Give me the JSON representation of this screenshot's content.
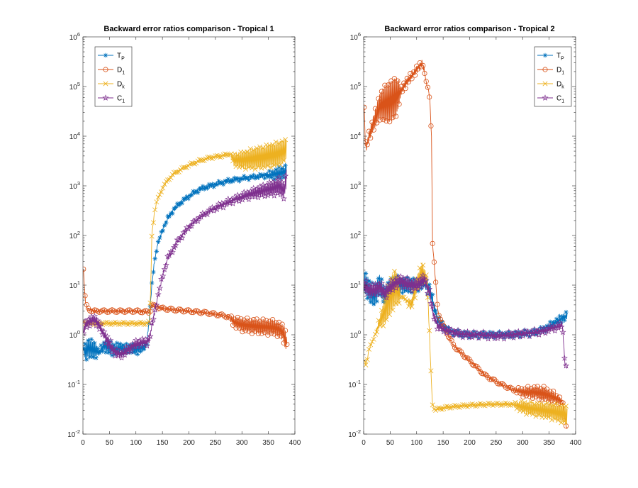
{
  "figure": {
    "background": "#ffffff"
  },
  "chart_data": [
    {
      "type": "line",
      "title": "Backward error ratios comparison - Tropical 1",
      "xlabel": "",
      "ylabel": "",
      "yscale": "log",
      "xlim": [
        0,
        400
      ],
      "ylim": [
        0.01,
        1000000
      ],
      "xticks": [
        "0",
        "50",
        "100",
        "150",
        "200",
        "250",
        "300",
        "350",
        "400"
      ],
      "yticks": [
        {
          "base": "10",
          "exp": "-2"
        },
        {
          "base": "10",
          "exp": "-1"
        },
        {
          "base": "10",
          "exp": "0"
        },
        {
          "base": "10",
          "exp": "1"
        },
        {
          "base": "10",
          "exp": "2"
        },
        {
          "base": "10",
          "exp": "3"
        },
        {
          "base": "10",
          "exp": "4"
        },
        {
          "base": "10",
          "exp": "5"
        },
        {
          "base": "10",
          "exp": "6"
        }
      ],
      "legend_position": "top-left",
      "series": [
        {
          "name": "T_P",
          "main": "T",
          "sub": "P",
          "color": "#0072BD",
          "marker": "asterisk",
          "x": [
            1,
            5,
            10,
            20,
            30,
            40,
            50,
            60,
            70,
            80,
            90,
            100,
            110,
            120,
            125,
            130,
            135,
            140,
            150,
            160,
            170,
            180,
            200,
            220,
            240,
            260,
            280,
            300,
            320,
            340,
            360,
            370,
            380,
            384
          ],
          "values": [
            0.5,
            0.45,
            0.55,
            0.5,
            0.45,
            0.6,
            0.55,
            0.5,
            0.55,
            0.5,
            0.55,
            0.5,
            0.55,
            0.6,
            2,
            10,
            30,
            60,
            130,
            220,
            320,
            420,
            620,
            850,
            1000,
            1150,
            1300,
            1400,
            1500,
            1600,
            1700,
            1800,
            1900,
            2000
          ],
          "band": [
            1,
            2.2,
            2.2,
            2.2,
            1.2,
            1.5,
            1.8,
            1.6,
            1.5,
            1.5,
            1.4,
            1.5,
            1.4,
            1.3,
            1.2,
            1.1,
            1.1,
            1.1,
            1.1,
            1.1,
            1.1,
            1.1,
            1.1,
            1.1,
            1.1,
            1.1,
            1.1,
            1.1,
            1.1,
            1.1,
            1.4,
            1.6,
            1.6,
            1.6
          ]
        },
        {
          "name": "D_1",
          "main": "D",
          "sub": "1",
          "color": "#D95319",
          "marker": "circle",
          "x": [
            1,
            3,
            5,
            8,
            12,
            16,
            20,
            30,
            50,
            80,
            100,
            120,
            126,
            128,
            130,
            135,
            140,
            150,
            170,
            200,
            230,
            260,
            275,
            285,
            300,
            320,
            340,
            360,
            370,
            378,
            382,
            385
          ],
          "values": [
            22,
            8,
            4.5,
            3.5,
            3.2,
            3.1,
            3,
            3,
            3,
            3,
            3,
            2.9,
            2.8,
            3.5,
            4,
            3.8,
            3.6,
            3.4,
            3.2,
            3,
            2.8,
            2.5,
            2.3,
            1.8,
            1.6,
            1.5,
            1.45,
            1.4,
            1.3,
            1.1,
            0.8,
            0.65
          ],
          "band": [
            1,
            1,
            1,
            1,
            1,
            1,
            1,
            1,
            1,
            1,
            1,
            1,
            1,
            1,
            1,
            1,
            1,
            1,
            1,
            1,
            1,
            1,
            1,
            1.5,
            1.7,
            1.8,
            1.85,
            1.85,
            1.85,
            1.9,
            2.6,
            1
          ]
        },
        {
          "name": "D_k",
          "main": "D",
          "sub": "k",
          "color": "#EDB120",
          "marker": "cross",
          "x": [
            1,
            10,
            20,
            30,
            50,
            80,
            100,
            120,
            126,
            128,
            130,
            135,
            140,
            150,
            160,
            170,
            180,
            200,
            220,
            240,
            260,
            270,
            278,
            285,
            300,
            320,
            340,
            360,
            370,
            380,
            384
          ],
          "values": [
            1.8,
            1.7,
            1.7,
            1.7,
            1.7,
            1.7,
            1.7,
            1.7,
            1.8,
            10,
            100,
            300,
            500,
            900,
            1300,
            1700,
            2000,
            2600,
            3200,
            3700,
            4000,
            4200,
            4400,
            3300,
            3300,
            3500,
            3800,
            4200,
            4500,
            5000,
            5500
          ],
          "band": [
            1,
            1,
            1,
            1,
            1,
            1,
            1,
            1,
            1,
            1,
            1,
            1,
            1,
            1,
            1,
            1,
            1,
            1,
            1,
            1,
            1,
            1,
            1,
            1.6,
            2,
            2.4,
            2.6,
            2.8,
            2.8,
            2.6,
            2.4
          ]
        },
        {
          "name": "C_1",
          "main": "C",
          "sub": "1",
          "color": "#7E2F8E",
          "marker": "pentagram",
          "x": [
            1,
            5,
            10,
            20,
            25,
            30,
            40,
            50,
            60,
            70,
            80,
            90,
            100,
            110,
            120,
            125,
            130,
            140,
            150,
            160,
            180,
            200,
            220,
            240,
            260,
            280,
            300,
            320,
            340,
            360,
            370,
            380,
            384
          ],
          "values": [
            1.2,
            1.6,
            1.8,
            2.0,
            1.9,
            1.6,
            1.0,
            0.65,
            0.45,
            0.4,
            0.45,
            0.55,
            0.65,
            0.7,
            0.7,
            0.8,
            1.5,
            5,
            15,
            35,
            80,
            150,
            230,
            320,
            400,
            500,
            600,
            700,
            800,
            900,
            1000,
            800,
            1500
          ],
          "band": [
            1.4,
            1.4,
            1.4,
            1.4,
            1.4,
            1.4,
            1.4,
            1.5,
            1.3,
            1.3,
            1.3,
            1.3,
            1.3,
            1.3,
            1.3,
            1.3,
            1.2,
            1.1,
            1.1,
            1.1,
            1.1,
            1.1,
            1.1,
            1.1,
            1.2,
            1.2,
            1.3,
            1.4,
            1.6,
            1.8,
            2,
            2,
            2
          ]
        }
      ]
    },
    {
      "type": "line",
      "title": "Backward error ratios comparison - Tropical 2",
      "xlabel": "",
      "ylabel": "",
      "yscale": "log",
      "xlim": [
        0,
        400
      ],
      "ylim": [
        0.01,
        1000000
      ],
      "xticks": [
        "0",
        "50",
        "100",
        "150",
        "200",
        "250",
        "300",
        "350",
        "400"
      ],
      "yticks": [
        {
          "base": "10",
          "exp": "-2"
        },
        {
          "base": "10",
          "exp": "-1"
        },
        {
          "base": "10",
          "exp": "0"
        },
        {
          "base": "10",
          "exp": "1"
        },
        {
          "base": "10",
          "exp": "2"
        },
        {
          "base": "10",
          "exp": "3"
        },
        {
          "base": "10",
          "exp": "4"
        },
        {
          "base": "10",
          "exp": "5"
        },
        {
          "base": "10",
          "exp": "6"
        }
      ],
      "legend_position": "top-right",
      "series": [
        {
          "name": "T_P",
          "main": "T",
          "sub": "P",
          "color": "#0072BD",
          "marker": "asterisk",
          "x": [
            1,
            5,
            10,
            20,
            30,
            40,
            50,
            60,
            70,
            80,
            90,
            100,
            110,
            115,
            120,
            125,
            130,
            135,
            140,
            150,
            160,
            180,
            200,
            220,
            240,
            260,
            280,
            300,
            320,
            340,
            360,
            370,
            380,
            384
          ],
          "values": [
            12,
            10,
            8,
            6,
            10,
            6,
            9,
            11,
            10,
            10,
            10,
            10,
            11,
            12,
            9,
            8,
            5,
            3,
            2,
            1.5,
            1.2,
            1.05,
            1.0,
            1.0,
            1.0,
            1.0,
            1.0,
            1.05,
            1.1,
            1.3,
            1.7,
            2.0,
            2.3,
            2.5
          ],
          "band": [
            2.4,
            2.6,
            2.6,
            2.4,
            2.4,
            2.2,
            2,
            2,
            1.8,
            1.8,
            1.8,
            1.7,
            1.6,
            1.6,
            1.6,
            1.6,
            1.5,
            1.4,
            1.3,
            1.3,
            1.2,
            1.2,
            1.2,
            1.2,
            1.2,
            1.2,
            1.2,
            1.2,
            1.2,
            1.2,
            1.3,
            1.3,
            1.3,
            1.3
          ]
        },
        {
          "name": "D_1",
          "main": "D",
          "sub": "1",
          "color": "#D95319",
          "marker": "circle",
          "x": [
            1,
            3,
            5,
            10,
            20,
            30,
            40,
            50,
            60,
            70,
            80,
            90,
            100,
            110,
            115,
            118,
            120,
            123,
            125,
            128,
            130,
            135,
            140,
            150,
            170,
            200,
            230,
            260,
            280,
            300,
            320,
            340,
            360,
            375,
            380,
            384
          ],
          "values": [
            40000,
            8000,
            6000,
            10000,
            20000,
            40000,
            45000,
            50000,
            60000,
            80000,
            120000,
            160000,
            220000,
            300000,
            200000,
            120000,
            100000,
            80000,
            50000,
            10000,
            70,
            15,
            3,
            1.5,
            0.6,
            0.3,
            0.15,
            0.1,
            0.08,
            0.07,
            0.07,
            0.065,
            0.055,
            0.045,
            0.02,
            0.012
          ],
          "band": [
            1,
            1.2,
            1.2,
            1.5,
            2,
            3,
            5,
            6,
            6,
            1.4,
            1.4,
            1.3,
            1.3,
            1.2,
            1.2,
            1,
            1,
            1,
            1,
            1,
            1,
            1,
            1,
            1,
            1,
            1,
            1,
            1,
            1,
            1.4,
            1.6,
            1.8,
            1.5,
            1.2,
            1,
            1
          ]
        },
        {
          "name": "D_k",
          "main": "D",
          "sub": "k",
          "color": "#EDB120",
          "marker": "cross",
          "x": [
            1,
            5,
            10,
            20,
            30,
            40,
            50,
            60,
            70,
            80,
            90,
            100,
            110,
            120,
            125,
            128,
            130,
            135,
            140,
            160,
            200,
            240,
            280,
            300,
            320,
            340,
            360,
            380,
            384
          ],
          "values": [
            0.3,
            0.25,
            0.5,
            0.9,
            1.8,
            3,
            6,
            9,
            6,
            5,
            4,
            10,
            20,
            12,
            0.6,
            0.1,
            0.04,
            0.03,
            0.032,
            0.035,
            0.038,
            0.04,
            0.04,
            0.035,
            0.032,
            0.03,
            0.028,
            0.025,
            0.022
          ],
          "band": [
            1,
            1,
            1,
            1,
            1.5,
            3,
            5,
            5,
            1,
            1,
            1.5,
            2,
            2,
            1.5,
            1,
            1,
            1,
            1,
            1,
            1,
            1,
            1,
            1,
            1.6,
            1.7,
            1.8,
            2,
            2.2,
            2.4
          ]
        },
        {
          "name": "C_1",
          "main": "C",
          "sub": "1",
          "color": "#7E2F8E",
          "marker": "pentagram",
          "x": [
            1,
            5,
            10,
            20,
            30,
            40,
            50,
            60,
            70,
            80,
            90,
            100,
            110,
            115,
            120,
            125,
            130,
            135,
            140,
            150,
            160,
            180,
            200,
            220,
            240,
            260,
            280,
            300,
            320,
            340,
            360,
            370,
            375,
            380,
            384
          ],
          "values": [
            10,
            9,
            8,
            8,
            9,
            7,
            9,
            11,
            12,
            11,
            10,
            10,
            12,
            13,
            9,
            7,
            3,
            2,
            1.5,
            1.3,
            1.2,
            1.05,
            1.0,
            1.0,
            0.95,
            0.95,
            1.0,
            1.05,
            1.1,
            1.2,
            1.4,
            1.5,
            1.6,
            0.25,
            0.22
          ],
          "band": [
            1.6,
            1.6,
            1.6,
            1.6,
            1.6,
            1.6,
            1.6,
            1.5,
            1.5,
            1.5,
            1.5,
            1.5,
            1.5,
            1.5,
            1.4,
            1.4,
            1.4,
            1.3,
            1.3,
            1.2,
            1.2,
            1.2,
            1.2,
            1.2,
            1.2,
            1.2,
            1.2,
            1.2,
            1.2,
            1.2,
            1.2,
            1.2,
            1.2,
            1,
            1
          ]
        }
      ]
    }
  ]
}
